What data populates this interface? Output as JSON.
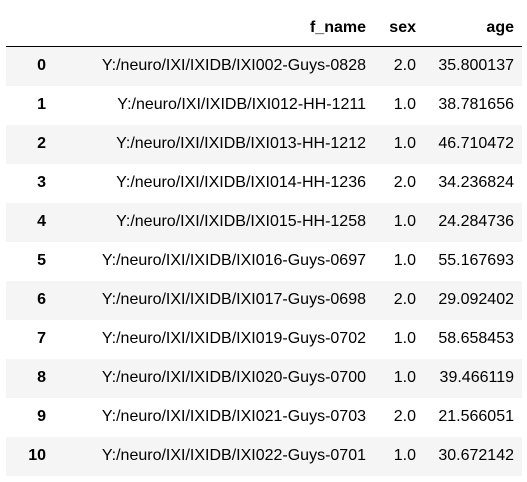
{
  "table": {
    "columns": {
      "index": "",
      "f_name": "f_name",
      "sex": "sex",
      "age": "age"
    },
    "rows": [
      {
        "index": "0",
        "f_name": "Y:/neuro/IXI/IXIDB/IXI002-Guys-0828",
        "sex": "2.0",
        "age": "35.800137"
      },
      {
        "index": "1",
        "f_name": "Y:/neuro/IXI/IXIDB/IXI012-HH-1211",
        "sex": "1.0",
        "age": "38.781656"
      },
      {
        "index": "2",
        "f_name": "Y:/neuro/IXI/IXIDB/IXI013-HH-1212",
        "sex": "1.0",
        "age": "46.710472"
      },
      {
        "index": "3",
        "f_name": "Y:/neuro/IXI/IXIDB/IXI014-HH-1236",
        "sex": "2.0",
        "age": "34.236824"
      },
      {
        "index": "4",
        "f_name": "Y:/neuro/IXI/IXIDB/IXI015-HH-1258",
        "sex": "1.0",
        "age": "24.284736"
      },
      {
        "index": "5",
        "f_name": "Y:/neuro/IXI/IXIDB/IXI016-Guys-0697",
        "sex": "1.0",
        "age": "55.167693"
      },
      {
        "index": "6",
        "f_name": "Y:/neuro/IXI/IXIDB/IXI017-Guys-0698",
        "sex": "2.0",
        "age": "29.092402"
      },
      {
        "index": "7",
        "f_name": "Y:/neuro/IXI/IXIDB/IXI019-Guys-0702",
        "sex": "1.0",
        "age": "58.658453"
      },
      {
        "index": "8",
        "f_name": "Y:/neuro/IXI/IXIDB/IXI020-Guys-0700",
        "sex": "1.0",
        "age": "39.466119"
      },
      {
        "index": "9",
        "f_name": "Y:/neuro/IXI/IXIDB/IXI021-Guys-0703",
        "sex": "2.0",
        "age": "21.566051"
      },
      {
        "index": "10",
        "f_name": "Y:/neuro/IXI/IXIDB/IXI022-Guys-0701",
        "sex": "1.0",
        "age": "30.672142"
      }
    ]
  },
  "colors": {
    "stripe": "#f5f5f5",
    "background": "#ffffff",
    "header_rule": "#000000"
  }
}
